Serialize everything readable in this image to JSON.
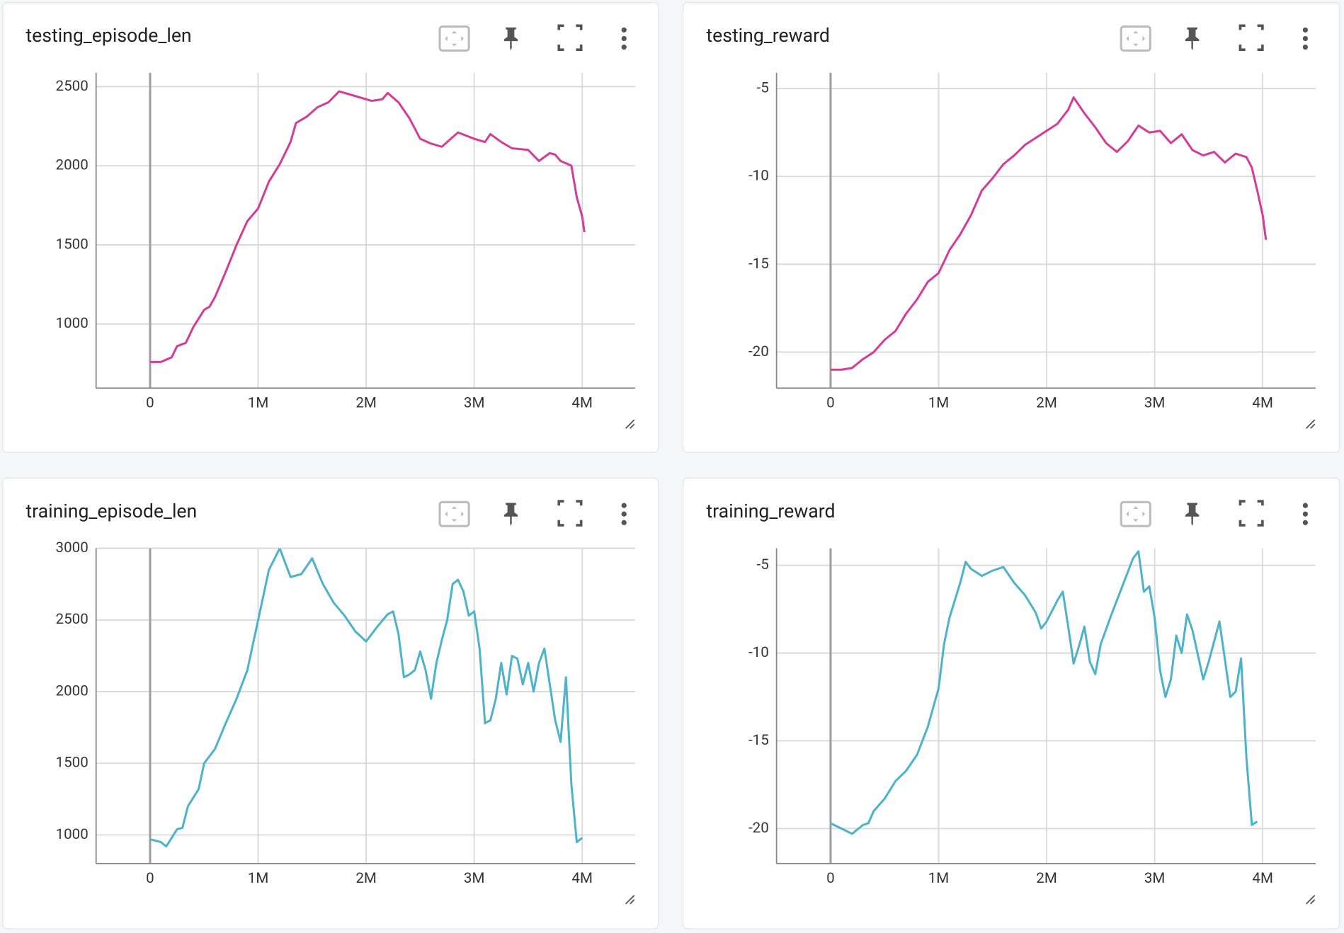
{
  "chart_data": [
    {
      "type": "line",
      "title": "testing_episode_len",
      "color": "#d33d97",
      "x": [
        0,
        100000,
        200000,
        250000,
        330000,
        400000,
        500000,
        550000,
        600000,
        700000,
        800000,
        900000,
        1000000,
        1100000,
        1200000,
        1300000,
        1350000,
        1450000,
        1550000,
        1650000,
        1750000,
        1850000,
        1950000,
        2050000,
        2150000,
        2200000,
        2300000,
        2400000,
        2500000,
        2600000,
        2700000,
        2850000,
        3000000,
        3100000,
        3150000,
        3250000,
        3350000,
        3500000,
        3600000,
        3700000,
        3750000,
        3800000,
        3900000,
        3950000,
        4000000,
        4020000
      ],
      "values": [
        760,
        760,
        790,
        860,
        880,
        980,
        1090,
        1110,
        1170,
        1330,
        1500,
        1650,
        1730,
        1900,
        2010,
        2150,
        2270,
        2310,
        2370,
        2400,
        2470,
        2450,
        2430,
        2410,
        2420,
        2460,
        2400,
        2300,
        2170,
        2140,
        2120,
        2210,
        2170,
        2150,
        2200,
        2150,
        2110,
        2100,
        2030,
        2080,
        2070,
        2030,
        2000,
        1800,
        1680,
        1580
      ],
      "xlim": [
        -500000,
        4490000
      ],
      "xticks": [
        0,
        {
          "value": 1000000,
          "label": "1M"
        },
        {
          "value": 2000000,
          "label": "2M"
        },
        {
          "value": 3000000,
          "label": "3M"
        },
        {
          "value": 4000000,
          "label": "4M"
        }
      ],
      "ylim": [
        595,
        2587
      ],
      "yticks": [
        1000,
        1500,
        2000,
        2500
      ]
    },
    {
      "type": "line",
      "title": "testing_reward",
      "color": "#d33d97",
      "x": [
        0,
        100000,
        200000,
        300000,
        400000,
        500000,
        600000,
        700000,
        800000,
        900000,
        1000000,
        1100000,
        1200000,
        1300000,
        1400000,
        1500000,
        1600000,
        1700000,
        1800000,
        1900000,
        2000000,
        2100000,
        2200000,
        2250000,
        2350000,
        2450000,
        2550000,
        2650000,
        2750000,
        2850000,
        2950000,
        3050000,
        3150000,
        3250000,
        3350000,
        3450000,
        3550000,
        3650000,
        3750000,
        3850000,
        3900000,
        3950000,
        4000000,
        4030000
      ],
      "values": [
        -21,
        -21,
        -20.9,
        -20.4,
        -20,
        -19.3,
        -18.8,
        -17.8,
        -17,
        -16,
        -15.5,
        -14.2,
        -13.3,
        -12.2,
        -10.8,
        -10.1,
        -9.3,
        -8.8,
        -8.2,
        -7.8,
        -7.4,
        -7,
        -6.2,
        -5.5,
        -6.4,
        -7.2,
        -8.1,
        -8.6,
        -8,
        -7.1,
        -7.5,
        -7.4,
        -8.1,
        -7.6,
        -8.5,
        -8.8,
        -8.6,
        -9.2,
        -8.7,
        -8.9,
        -9.5,
        -10.8,
        -12.2,
        -13.6
      ],
      "xlim": [
        -500000,
        4490000
      ],
      "xticks": [
        0,
        {
          "value": 1000000,
          "label": "1M"
        },
        {
          "value": 2000000,
          "label": "2M"
        },
        {
          "value": 3000000,
          "label": "3M"
        },
        {
          "value": 4000000,
          "label": "4M"
        }
      ],
      "ylim": [
        -22.05,
        -4.1
      ],
      "yticks": [
        -20,
        -15,
        -10,
        -5
      ]
    },
    {
      "type": "line",
      "title": "training_episode_len",
      "color": "#4db3c8",
      "x": [
        0,
        100000,
        150000,
        250000,
        300000,
        350000,
        450000,
        500000,
        600000,
        700000,
        800000,
        900000,
        1000000,
        1100000,
        1200000,
        1300000,
        1400000,
        1500000,
        1600000,
        1700000,
        1800000,
        1900000,
        2000000,
        2100000,
        2200000,
        2250000,
        2300000,
        2350000,
        2400000,
        2450000,
        2500000,
        2550000,
        2600000,
        2650000,
        2700000,
        2750000,
        2800000,
        2850000,
        2900000,
        2950000,
        3000000,
        3050000,
        3100000,
        3150000,
        3200000,
        3250000,
        3300000,
        3350000,
        3400000,
        3450000,
        3500000,
        3550000,
        3600000,
        3650000,
        3700000,
        3750000,
        3800000,
        3850000,
        3900000,
        3950000,
        4000000
      ],
      "values": [
        970,
        950,
        920,
        1040,
        1050,
        1200,
        1320,
        1500,
        1600,
        1780,
        1950,
        2150,
        2500,
        2850,
        3000,
        2800,
        2820,
        2930,
        2750,
        2620,
        2530,
        2420,
        2350,
        2450,
        2540,
        2560,
        2400,
        2100,
        2120,
        2150,
        2280,
        2150,
        1950,
        2200,
        2360,
        2500,
        2750,
        2780,
        2700,
        2530,
        2560,
        2300,
        1780,
        1800,
        1950,
        2200,
        1980,
        2250,
        2230,
        2050,
        2200,
        2000,
        2200,
        2300,
        2050,
        1800,
        1650,
        2100,
        1350,
        950,
        980
      ],
      "xlim": [
        -500000,
        4490000
      ],
      "xticks": [
        0,
        {
          "value": 1000000,
          "label": "1M"
        },
        {
          "value": 2000000,
          "label": "2M"
        },
        {
          "value": 3000000,
          "label": "3M"
        },
        {
          "value": 4000000,
          "label": "4M"
        }
      ],
      "ylim": [
        800,
        3000
      ],
      "yticks": [
        1000,
        1500,
        2000,
        2500,
        3000
      ]
    },
    {
      "type": "line",
      "title": "training_reward",
      "color": "#4db3c8",
      "x": [
        0,
        100000,
        200000,
        300000,
        350000,
        400000,
        500000,
        600000,
        700000,
        800000,
        900000,
        1000000,
        1050000,
        1100000,
        1200000,
        1250000,
        1300000,
        1400000,
        1500000,
        1600000,
        1700000,
        1800000,
        1900000,
        1950000,
        2000000,
        2100000,
        2150000,
        2200000,
        2250000,
        2300000,
        2350000,
        2400000,
        2450000,
        2500000,
        2600000,
        2700000,
        2800000,
        2850000,
        2900000,
        2950000,
        3000000,
        3050000,
        3100000,
        3150000,
        3200000,
        3250000,
        3300000,
        3350000,
        3450000,
        3500000,
        3600000,
        3700000,
        3750000,
        3800000,
        3850000,
        3900000,
        3950000
      ],
      "values": [
        -19.7,
        -20,
        -20.3,
        -19.8,
        -19.7,
        -19,
        -18.3,
        -17.3,
        -16.7,
        -15.8,
        -14.2,
        -12,
        -9.5,
        -8,
        -6,
        -4.8,
        -5.2,
        -5.6,
        -5.3,
        -5.1,
        -6,
        -6.7,
        -7.7,
        -8.6,
        -8.2,
        -7,
        -6.5,
        -8.5,
        -10.6,
        -9.6,
        -8.5,
        -10.5,
        -11.2,
        -9.5,
        -7.8,
        -6.2,
        -4.6,
        -4.2,
        -6.5,
        -6.2,
        -8,
        -11,
        -12.5,
        -11.5,
        -9,
        -10,
        -7.8,
        -8.7,
        -11.5,
        -10.5,
        -8.2,
        -12.5,
        -12.2,
        -10.3,
        -16,
        -19.8,
        -19.6
      ],
      "xlim": [
        -500000,
        4490000
      ],
      "xticks": [
        0,
        {
          "value": 1000000,
          "label": "1M"
        },
        {
          "value": 2000000,
          "label": "2M"
        },
        {
          "value": 3000000,
          "label": "3M"
        },
        {
          "value": 4000000,
          "label": "4M"
        }
      ],
      "ylim": [
        -22,
        -4.03
      ],
      "yticks": [
        -20,
        -15,
        -10,
        -5
      ]
    }
  ]
}
